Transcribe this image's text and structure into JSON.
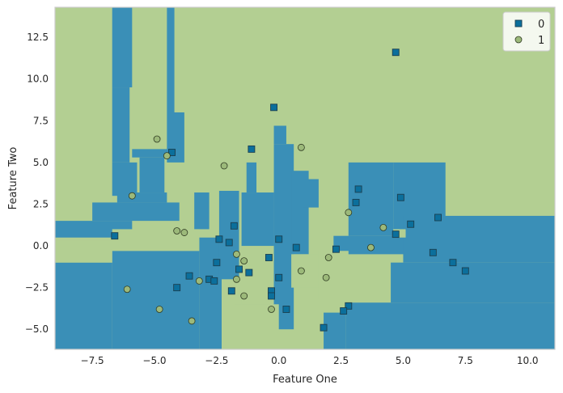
{
  "chart_data": {
    "type": "scatter",
    "title": "",
    "xlabel": "Feature One",
    "ylabel": "Feature Two",
    "xlim": [
      -9.0,
      11.1
    ],
    "ylim": [
      -6.2,
      14.3
    ],
    "xticks": [
      -7.5,
      -5.0,
      -2.5,
      0.0,
      2.5,
      5.0,
      7.5,
      10.0
    ],
    "xtick_labels": [
      "−7.5",
      "−5.0",
      "−2.5",
      "0.0",
      "2.5",
      "5.0",
      "7.5",
      "10.0"
    ],
    "yticks": [
      -5.0,
      -2.5,
      0.0,
      2.5,
      5.0,
      7.5,
      10.0,
      12.5
    ],
    "ytick_labels": [
      "−5.0",
      "−2.5",
      "0.0",
      "2.5",
      "5.0",
      "7.5",
      "10.0",
      "12.5"
    ],
    "grid": false,
    "legend_position": "top-right",
    "background": "decision-regions",
    "region_colors": {
      "0": "#3a8fb7",
      "1": "#b3cf92"
    },
    "regions_class0": [
      [
        -9.0,
        -6.7,
        -6.2,
        -1.0
      ],
      [
        -6.7,
        -3.2,
        -6.2,
        -0.3
      ],
      [
        -3.2,
        -2.3,
        -6.2,
        0.5
      ],
      [
        -9.0,
        -5.9,
        0.5,
        1.5
      ],
      [
        -7.5,
        -4.0,
        1.5,
        2.6
      ],
      [
        -6.5,
        -4.5,
        2.6,
        3.2
      ],
      [
        -5.6,
        -4.6,
        3.2,
        5.3
      ],
      [
        -5.9,
        -4.2,
        5.3,
        5.8
      ],
      [
        -6.7,
        -5.7,
        3.0,
        5.0
      ],
      [
        -6.7,
        -6.0,
        5.0,
        9.5
      ],
      [
        -6.7,
        -5.9,
        9.5,
        14.3
      ],
      [
        -4.5,
        -4.2,
        8.0,
        14.3
      ],
      [
        -4.5,
        -3.8,
        5.0,
        8.0
      ],
      [
        -3.4,
        -2.8,
        1.0,
        3.2
      ],
      [
        -2.4,
        -1.6,
        -2.0,
        3.3
      ],
      [
        -1.5,
        -0.2,
        0.0,
        3.2
      ],
      [
        -1.3,
        -0.9,
        3.2,
        5.0
      ],
      [
        -0.2,
        0.6,
        -5.0,
        6.1
      ],
      [
        0.5,
        1.2,
        -0.5,
        4.5
      ],
      [
        1.0,
        1.6,
        2.3,
        4.0
      ],
      [
        -0.2,
        0.3,
        6.1,
        7.2
      ],
      [
        2.8,
        4.6,
        0.6,
        5.0
      ],
      [
        4.6,
        6.7,
        0.0,
        5.0
      ],
      [
        2.2,
        6.7,
        -0.5,
        0.6
      ],
      [
        2.7,
        11.1,
        -6.2,
        -3.4
      ],
      [
        4.5,
        11.1,
        -3.4,
        -1.0
      ],
      [
        5.0,
        11.1,
        -1.0,
        1.8
      ],
      [
        1.8,
        2.7,
        -6.2,
        -4.0
      ]
    ],
    "regions_class1": [
      [
        -1.8,
        0.0,
        -6.2,
        -3.5
      ],
      [
        -1.5,
        -0.3,
        -3.5,
        -2.8
      ],
      [
        -9.0,
        -6.7,
        -1.0,
        0.3
      ],
      [
        -6.7,
        -3.2,
        -0.3,
        1.0
      ],
      [
        0.5,
        1.8,
        -2.5,
        -0.5
      ],
      [
        1.6,
        2.8,
        -3.2,
        -0.3
      ],
      [
        4.6,
        5.1,
        0.5,
        1.0
      ]
    ],
    "series": [
      {
        "name": "0",
        "marker": "square",
        "color": "#0b6f9c",
        "points": [
          [
            4.7,
            11.6
          ],
          [
            -0.2,
            8.3
          ],
          [
            -1.1,
            5.8
          ],
          [
            -4.3,
            5.6
          ],
          [
            3.2,
            3.4
          ],
          [
            4.9,
            2.9
          ],
          [
            3.1,
            2.6
          ],
          [
            6.4,
            1.7
          ],
          [
            5.3,
            1.3
          ],
          [
            -1.8,
            1.2
          ],
          [
            4.7,
            0.7
          ],
          [
            -6.6,
            0.6
          ],
          [
            -2.4,
            0.4
          ],
          [
            0.0,
            0.4
          ],
          [
            -2.0,
            0.2
          ],
          [
            0.7,
            -0.1
          ],
          [
            2.3,
            -0.2
          ],
          [
            6.2,
            -0.4
          ],
          [
            -0.4,
            -0.7
          ],
          [
            7.0,
            -1.0
          ],
          [
            -2.5,
            -1.0
          ],
          [
            -1.6,
            -1.4
          ],
          [
            -1.2,
            -1.6
          ],
          [
            7.5,
            -1.5
          ],
          [
            -3.6,
            -1.8
          ],
          [
            0.0,
            -1.9
          ],
          [
            -2.8,
            -2.0
          ],
          [
            -2.6,
            -2.1
          ],
          [
            -4.1,
            -2.5
          ],
          [
            -1.9,
            -2.7
          ],
          [
            -0.3,
            -2.7
          ],
          [
            -0.3,
            -3.0
          ],
          [
            2.8,
            -3.6
          ],
          [
            0.3,
            -3.8
          ],
          [
            2.6,
            -3.9
          ],
          [
            1.8,
            -4.9
          ]
        ]
      },
      {
        "name": "1",
        "marker": "circle",
        "color": "#9cb97a",
        "points": [
          [
            -4.9,
            6.4
          ],
          [
            0.9,
            5.9
          ],
          [
            -4.5,
            5.4
          ],
          [
            -2.2,
            4.8
          ],
          [
            -5.9,
            3.0
          ],
          [
            2.8,
            2.0
          ],
          [
            4.2,
            1.1
          ],
          [
            -4.1,
            0.9
          ],
          [
            -3.8,
            0.8
          ],
          [
            3.7,
            -0.1
          ],
          [
            -1.7,
            -0.5
          ],
          [
            2.0,
            -0.7
          ],
          [
            -1.4,
            -0.9
          ],
          [
            0.9,
            -1.5
          ],
          [
            -1.7,
            -2.0
          ],
          [
            1.9,
            -1.9
          ],
          [
            -3.2,
            -2.1
          ],
          [
            -6.1,
            -2.6
          ],
          [
            -1.4,
            -3.0
          ],
          [
            -0.3,
            -3.8
          ],
          [
            -4.8,
            -3.8
          ],
          [
            -3.5,
            -4.5
          ]
        ]
      }
    ]
  }
}
